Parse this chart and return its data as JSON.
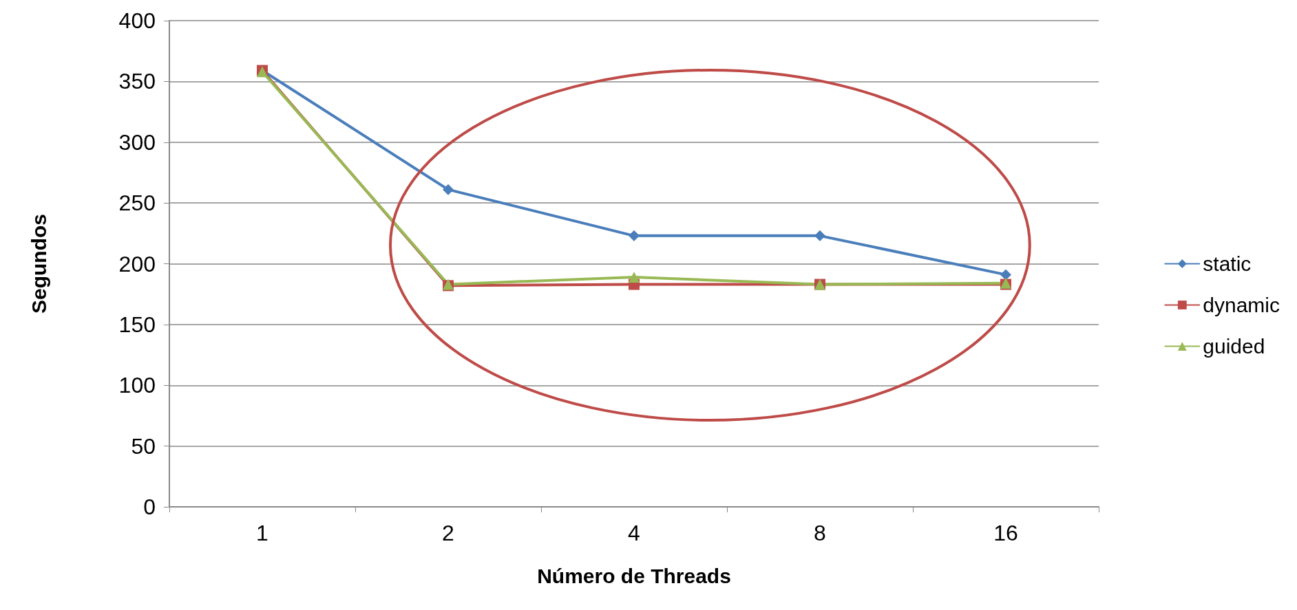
{
  "chart_data": {
    "type": "line",
    "xlabel": "Número de Threads",
    "ylabel": "Segundos",
    "categories": [
      "1",
      "2",
      "4",
      "8",
      "16"
    ],
    "series": [
      {
        "name": "static",
        "color": "#4a7ebb",
        "marker": "diamond",
        "values": [
          359,
          261,
          223,
          223,
          191
        ]
      },
      {
        "name": "dynamic",
        "color": "#be4b48",
        "marker": "square",
        "values": [
          359,
          182,
          183,
          183,
          183
        ]
      },
      {
        "name": "guided",
        "color": "#98b954",
        "marker": "triangle",
        "values": [
          358,
          183,
          189,
          183,
          184
        ]
      }
    ],
    "ylim": [
      0,
      400
    ],
    "yticks": [
      0,
      50,
      100,
      150,
      200,
      250,
      300,
      350,
      400
    ],
    "grid": "y",
    "legend": "right",
    "line_style": "solid"
  }
}
